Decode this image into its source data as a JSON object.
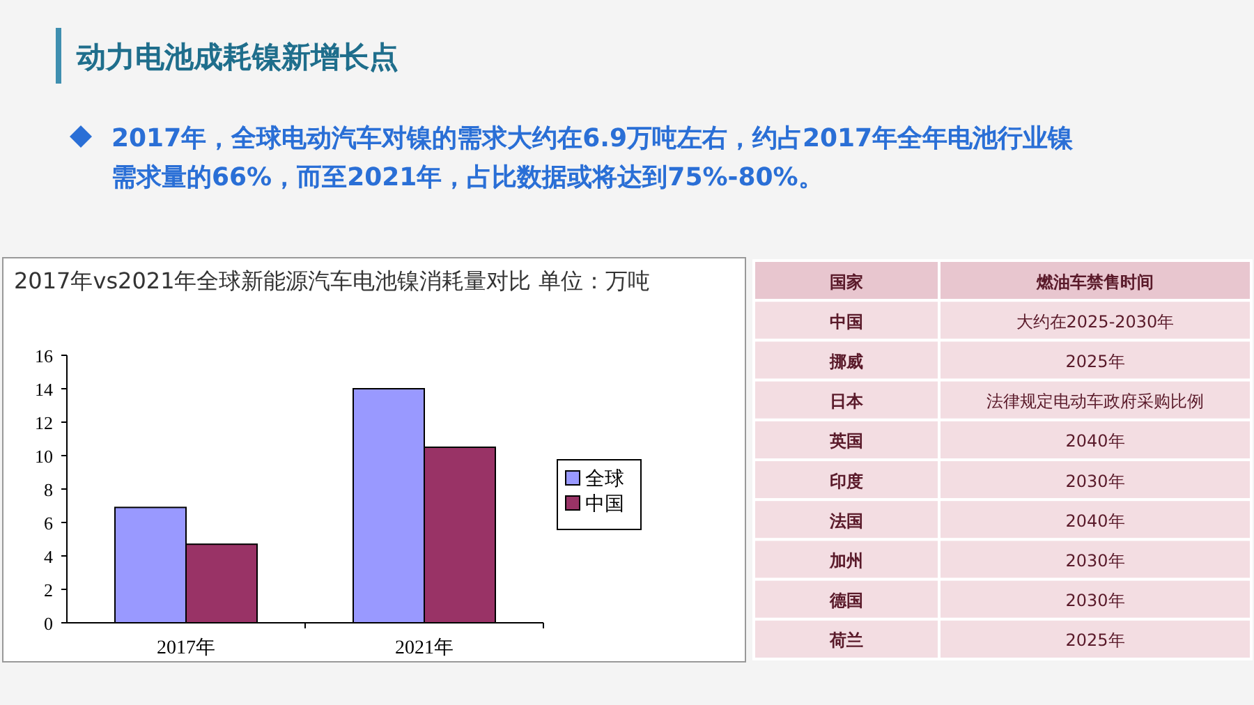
{
  "chart_data": [
    {
      "type": "bar",
      "title": "2017年vs2021年全球新能源汽车电池镍消耗量对比  单位：万吨",
      "annotations": [
        "动力电池成耗镍新增长点",
        "2017年，全球电动汽车对镍的需求大约在6.9万吨左右，约占2017年全年电池行业镍需求量的66%，而至2021年，占比数据或将达到75%-80%。"
      ],
      "categories": [
        "2017年",
        "2021年"
      ],
      "series": [
        {
          "name": "全球",
          "color": "#9999ff",
          "values": [
            6.9,
            14
          ]
        },
        {
          "name": "中国",
          "color": "#993366",
          "values": [
            4.7,
            10.5
          ]
        }
      ],
      "ylim": [
        0,
        16
      ],
      "yticks": [
        0,
        2,
        4,
        6,
        8,
        10,
        12,
        14,
        16
      ],
      "legend": "right",
      "grid": false
    },
    {
      "type": "other",
      "categories": [
        "国家",
        "燃油车禁售时间"
      ],
      "y_categories": [
        "中国",
        "挪威",
        "日本",
        "英国",
        "印度",
        "法国",
        "加州",
        "德国",
        "荷兰"
      ],
      "cell_labels": [
        [
          "大约在2025-2030年"
        ],
        [
          "2025年"
        ],
        [
          "法律规定电动车政府采购比例"
        ],
        [
          "2040年"
        ],
        [
          "2030年"
        ],
        [
          "2040年"
        ],
        [
          "2030年"
        ],
        [
          "2030年"
        ],
        [
          "2025年"
        ]
      ]
    }
  ]
}
